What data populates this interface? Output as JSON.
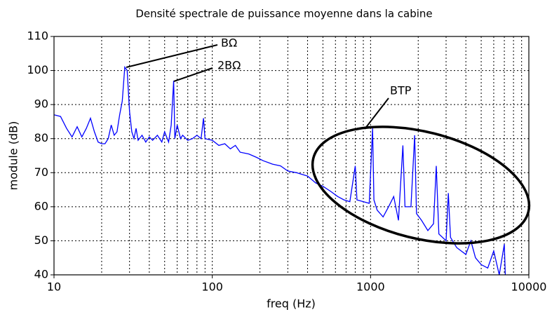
{
  "chart_data": {
    "type": "line",
    "title": "Densité spectrale de puissance moyenne dans la cabine",
    "x_label": "freq (Hz)",
    "y_label": "module (dB)",
    "x_scale": "log",
    "grid": true,
    "color": "#0000ff",
    "xlim": [
      10,
      10000
    ],
    "xticks": [
      10,
      100,
      1000,
      10000
    ],
    "xminorticks": [
      20,
      30,
      40,
      50,
      60,
      70,
      80,
      90,
      200,
      300,
      400,
      500,
      600,
      700,
      800,
      900,
      2000,
      3000,
      4000,
      5000,
      6000,
      7000,
      8000,
      9000
    ],
    "ylim": [
      40,
      110
    ],
    "yticks": [
      40,
      50,
      60,
      70,
      80,
      90,
      100,
      110
    ],
    "x": [
      10,
      11,
      12,
      13,
      14,
      15,
      16,
      17,
      18,
      19,
      20,
      21,
      22,
      23,
      24,
      25,
      26,
      27,
      28,
      29,
      30,
      31,
      32,
      33,
      34,
      36,
      38,
      40,
      42,
      45,
      48,
      50,
      53,
      55,
      57,
      58,
      60,
      63,
      65,
      70,
      75,
      80,
      85,
      88,
      90,
      100,
      110,
      120,
      130,
      140,
      150,
      170,
      190,
      210,
      240,
      270,
      300,
      340,
      400,
      450,
      500,
      560,
      620,
      680,
      740,
      800,
      820,
      900,
      980,
      1030,
      1050,
      1100,
      1200,
      1300,
      1400,
      1500,
      1600,
      1650,
      1800,
      1900,
      1950,
      2100,
      2300,
      2500,
      2600,
      2700,
      3000,
      3100,
      3200,
      3500,
      4000,
      4300,
      4600,
      5000,
      5500,
      6000,
      6500,
      7000,
      7100
    ],
    "values": [
      87,
      86.5,
      83,
      80.5,
      83.5,
      80.5,
      83,
      86,
      82,
      79,
      78.5,
      78.5,
      80,
      84,
      81,
      82,
      87,
      91,
      101,
      100,
      88,
      82,
      80,
      83,
      79.5,
      81,
      79,
      80.5,
      79.5,
      81,
      79,
      82,
      79,
      84,
      97,
      80,
      84,
      80,
      81,
      79.5,
      80,
      81,
      80,
      86,
      80,
      79.5,
      78,
      78.5,
      77,
      78,
      76,
      75.5,
      74.5,
      73.5,
      72.5,
      72,
      70.5,
      70,
      69,
      67,
      66,
      64.5,
      63,
      62,
      61.5,
      72,
      62,
      61.5,
      61,
      83,
      62,
      59,
      57,
      60,
      63,
      56,
      78,
      60,
      60,
      81,
      58,
      56,
      53,
      55,
      72,
      52,
      50,
      64,
      51,
      48,
      46,
      50,
      45,
      43,
      42,
      47,
      40,
      49,
      40
    ],
    "annotations": [
      {
        "text": "BΩ"
      },
      {
        "text": "2BΩ"
      },
      {
        "text": "BTP"
      }
    ]
  }
}
